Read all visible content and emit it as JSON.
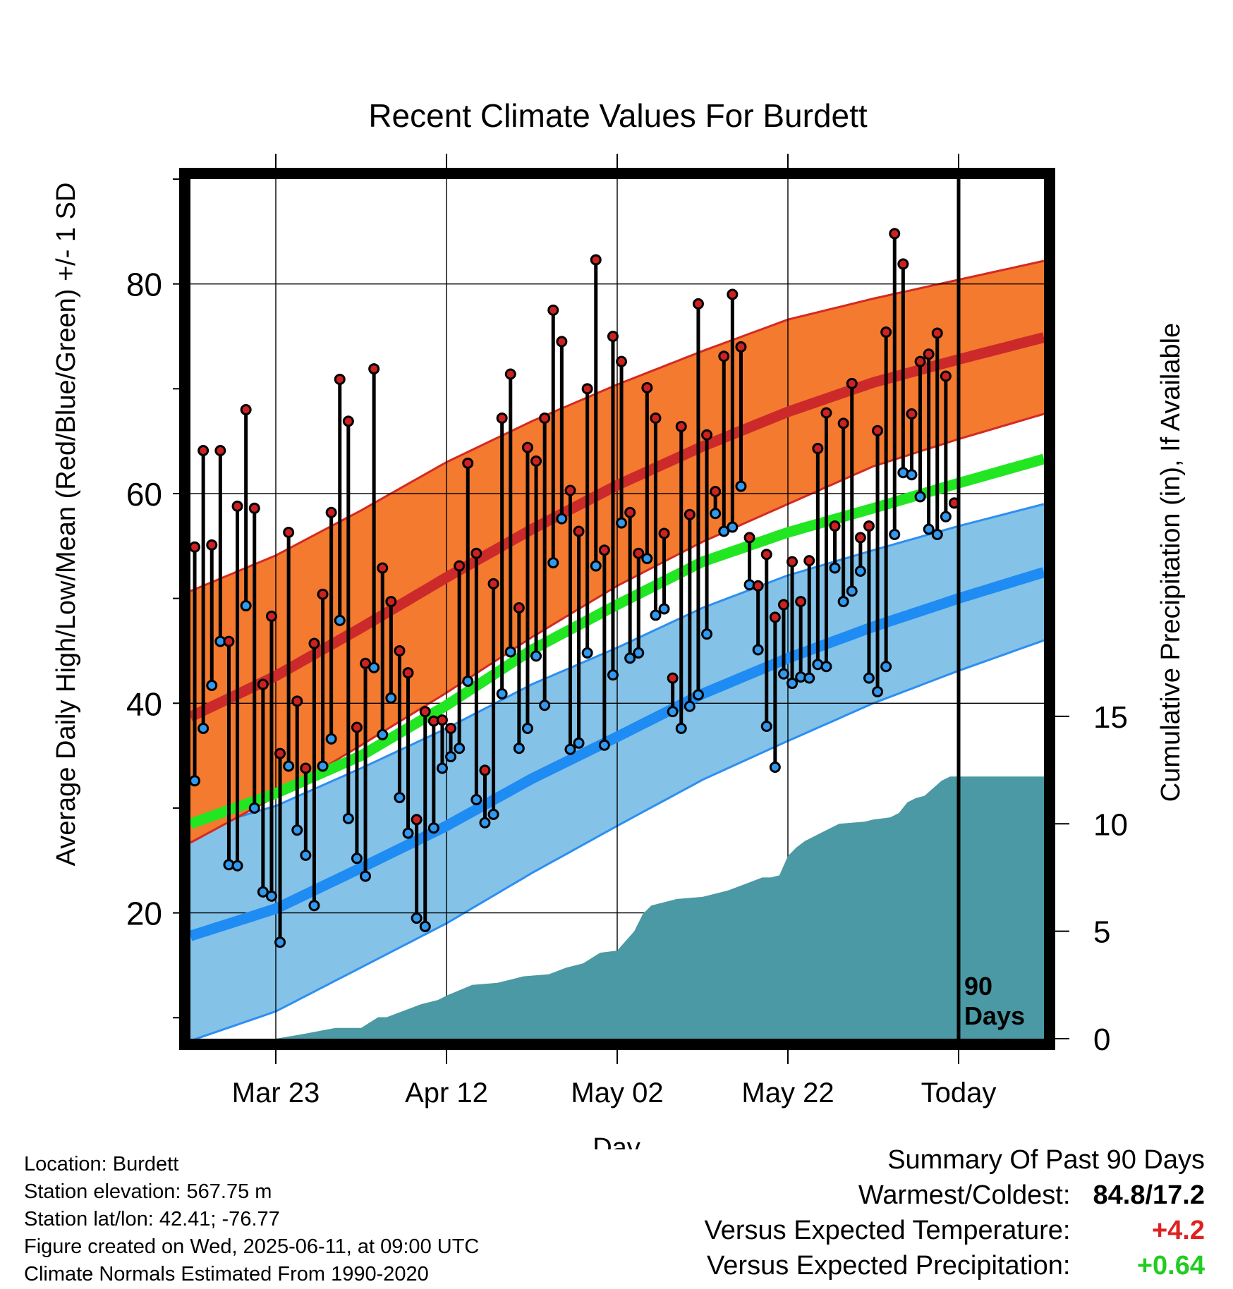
{
  "chart_data": {
    "type": "line",
    "title": "Recent Climate Values For Burdett",
    "xlabel": "Day",
    "ylabel": "Average Daily High/Low/Mean (Red/Blue/Green) +/- 1 SD",
    "y2label": "Cumulative Precipitation (in), If Available",
    "xlim": [
      0,
      100
    ],
    "ylim": [
      8,
      90
    ],
    "y2lim": [
      0,
      40
    ],
    "x_ticks": [
      {
        "x": 10,
        "label": "Mar 23"
      },
      {
        "x": 30,
        "label": "Apr 12"
      },
      {
        "x": 50,
        "label": "May 02"
      },
      {
        "x": 70,
        "label": "May 22"
      },
      {
        "x": 90,
        "label": "Today"
      }
    ],
    "y_ticks": [
      20,
      40,
      60,
      80
    ],
    "y2_ticks": [
      0,
      5,
      10,
      15
    ],
    "today_x": 90,
    "today_label": [
      "90",
      "Days"
    ],
    "grid": true,
    "normals": {
      "x": [
        0,
        10,
        20,
        30,
        40,
        50,
        60,
        70,
        80,
        90,
        100
      ],
      "high": [
        38.7,
        42.6,
        47.2,
        52.0,
        56.6,
        60.8,
        64.5,
        67.8,
        70.6,
        72.8,
        74.9
      ],
      "high_sd": [
        12.0,
        11.5,
        11.2,
        11.0,
        10.3,
        9.6,
        9.1,
        8.8,
        8.0,
        7.6,
        7.3
      ],
      "mean": [
        28.5,
        31.4,
        35.0,
        39.8,
        45.1,
        49.4,
        53.5,
        56.3,
        58.6,
        61.0,
        63.3
      ],
      "low": [
        17.8,
        20.4,
        24.3,
        28.3,
        32.8,
        36.8,
        40.9,
        44.3,
        47.3,
        50.0,
        52.5
      ],
      "low_sd": [
        10.0,
        9.8,
        9.5,
        9.3,
        9.0,
        8.5,
        8.2,
        7.9,
        7.3,
        6.9,
        6.5
      ]
    },
    "series": [
      {
        "name": "High",
        "color": "#cc2222",
        "x": [
          0,
          1,
          2,
          3,
          4,
          5,
          6,
          7,
          8,
          9,
          10,
          11,
          12,
          13,
          14,
          15,
          16,
          17,
          18,
          19,
          20,
          21,
          22,
          23,
          24,
          25,
          26,
          27,
          28,
          29,
          30,
          31,
          32,
          33,
          34,
          35,
          36,
          37,
          38,
          39,
          40,
          41,
          42,
          43,
          44,
          45,
          46,
          47,
          48,
          49,
          50,
          51,
          52,
          53,
          54,
          55,
          56,
          57,
          58,
          59,
          60,
          61,
          62,
          63,
          64,
          65,
          66,
          67,
          68,
          69,
          70,
          71,
          72,
          73,
          74,
          75,
          76,
          77,
          78,
          79,
          80,
          81,
          82,
          83,
          84,
          85,
          86,
          87,
          88,
          89
        ],
        "values": [
          54.9,
          64.1,
          55.1,
          64.1,
          45.9,
          58.8,
          68.0,
          58.6,
          41.8,
          48.3,
          35.2,
          56.3,
          40.2,
          33.8,
          45.7,
          50.4,
          58.2,
          70.9,
          66.9,
          37.7,
          43.8,
          71.9,
          52.9,
          49.7,
          45.0,
          42.9,
          28.9,
          39.2,
          38.3,
          38.4,
          37.6,
          53.1,
          62.9,
          54.3,
          33.6,
          51.4,
          67.2,
          71.4,
          49.1,
          64.4,
          63.1,
          67.2,
          77.5,
          74.5,
          60.3,
          56.4,
          70.0,
          82.3,
          54.6,
          75.0,
          72.6,
          58.2,
          54.3,
          70.1,
          67.2,
          56.2,
          42.4,
          66.4,
          58.0,
          78.1,
          65.6,
          60.2,
          73.1,
          79.0,
          74.0,
          55.8,
          51.2,
          54.2,
          48.2,
          49.4,
          53.5,
          49.7,
          53.6,
          64.3,
          67.7,
          56.9,
          66.7,
          70.5,
          55.8,
          56.9,
          66.0,
          75.4,
          84.8,
          81.9,
          67.6,
          72.6,
          73.3,
          75.3,
          71.2,
          59.1
        ]
      },
      {
        "name": "Low",
        "color": "#3399ee",
        "x": [
          0,
          1,
          2,
          3,
          4,
          5,
          6,
          7,
          8,
          9,
          10,
          11,
          12,
          13,
          14,
          15,
          16,
          17,
          18,
          19,
          20,
          21,
          22,
          23,
          24,
          25,
          26,
          27,
          28,
          29,
          30,
          31,
          32,
          33,
          34,
          35,
          36,
          37,
          38,
          39,
          40,
          41,
          42,
          43,
          44,
          45,
          46,
          47,
          48,
          49,
          50,
          51,
          52,
          53,
          54,
          55,
          56,
          57,
          58,
          59,
          60,
          61,
          62,
          63,
          64,
          65,
          66,
          67,
          68,
          69,
          70,
          71,
          72,
          73,
          74,
          75,
          76,
          77,
          78,
          79,
          80,
          81,
          82,
          83,
          84,
          85,
          86,
          87,
          88,
          89
        ],
        "values": [
          32.6,
          37.6,
          41.7,
          45.9,
          24.6,
          24.5,
          49.3,
          30.0,
          22.0,
          21.6,
          17.2,
          34.0,
          27.9,
          25.5,
          20.7,
          34.0,
          36.6,
          47.9,
          29.0,
          25.2,
          23.5,
          43.4,
          37.0,
          40.5,
          31.0,
          27.6,
          19.5,
          18.7,
          28.1,
          33.8,
          34.9,
          35.7,
          42.1,
          30.8,
          28.6,
          29.4,
          40.9,
          44.9,
          35.7,
          37.6,
          44.5,
          39.8,
          53.4,
          57.6,
          35.6,
          36.2,
          44.8,
          53.1,
          36.0,
          42.7,
          57.2,
          44.3,
          44.8,
          53.8,
          48.4,
          49.0,
          39.2,
          37.6,
          39.7,
          40.8,
          46.6,
          58.1,
          56.4,
          56.8,
          60.7,
          51.3,
          45.1,
          37.8,
          33.9,
          42.8,
          41.9,
          42.5,
          42.4,
          43.7,
          43.5,
          52.9,
          49.7,
          50.7,
          52.6,
          42.4,
          41.1,
          43.5,
          56.1,
          62.0,
          61.8,
          59.7,
          56.6,
          56.1,
          57.8,
          59.1
        ]
      }
    ],
    "precipitation": {
      "x": [
        0,
        10,
        13,
        17,
        20,
        22,
        23,
        27,
        29,
        30,
        33,
        36,
        38,
        39,
        42,
        44,
        46,
        48,
        50,
        52,
        53,
        54,
        57,
        60,
        63,
        65,
        67,
        68,
        69,
        70,
        71,
        72,
        73,
        74,
        76,
        79,
        80,
        82,
        83,
        84,
        85,
        86,
        88,
        89,
        90,
        100
      ],
      "values": [
        0,
        0,
        0.2,
        0.5,
        0.5,
        1.0,
        1.0,
        1.6,
        1.8,
        2.0,
        2.5,
        2.6,
        2.8,
        2.9,
        3.0,
        3.3,
        3.5,
        4.0,
        4.1,
        5.0,
        5.8,
        6.2,
        6.5,
        6.6,
        6.9,
        7.2,
        7.5,
        7.5,
        7.6,
        8.5,
        8.9,
        9.2,
        9.4,
        9.6,
        10.0,
        10.1,
        10.2,
        10.3,
        10.5,
        11.0,
        11.2,
        11.3,
        12.0,
        12.2,
        12.2,
        12.2
      ],
      "color": "#4a99a4"
    }
  },
  "footer": {
    "location": "Location: Burdett",
    "elevation": "Station elevation: 567.75 m",
    "latlon": "Station lat/lon: 42.41; -76.77",
    "created": "Figure created on Wed, 2025-06-11, at 09:00 UTC",
    "normals": "Climate Normals Estimated From 1990-2020"
  },
  "summary": {
    "title": "Summary Of Past 90 Days",
    "warmest_label": "Warmest/Coldest:",
    "warmest_value": "84.8/17.2",
    "temp_label": "Versus Expected Temperature:",
    "temp_value": "+4.2",
    "temp_color": "#dd2222",
    "precip_label": "Versus Expected Precipitation:",
    "precip_value": "+0.64",
    "precip_color": "#22cc22"
  }
}
